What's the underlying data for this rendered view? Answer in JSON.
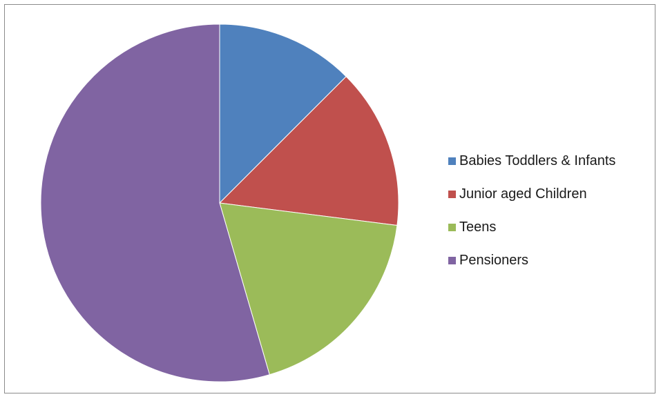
{
  "chart_data": {
    "type": "pie",
    "title": "",
    "start_angle_deg": 0,
    "direction": "clockwise",
    "slices": [
      {
        "label": "Babies Toddlers & Infants",
        "value": 12.5,
        "color": "#4f81bd"
      },
      {
        "label": "Junior aged Children",
        "value": 14.5,
        "color": "#c0504d"
      },
      {
        "label": "Teens",
        "value": 18.5,
        "color": "#9bbb59"
      },
      {
        "label": "Pensioners",
        "value": 54.5,
        "color": "#8064a2"
      }
    ],
    "legend_position": "right",
    "border_color": "#8a8a8a"
  }
}
